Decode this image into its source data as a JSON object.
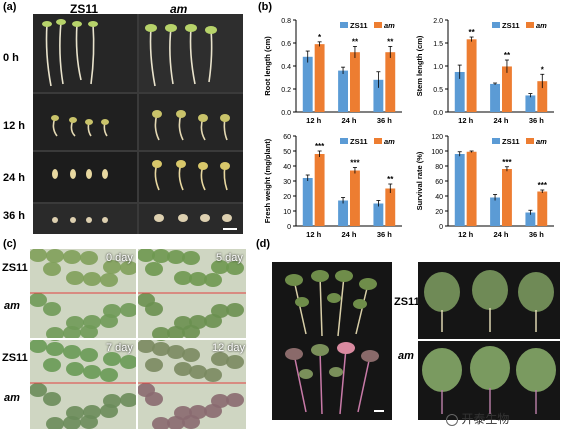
{
  "panel_labels": {
    "a": "(a)",
    "b": "(b)",
    "c": "(c)",
    "d": "(d)"
  },
  "panel_a": {
    "col_left": "ZS11",
    "col_right": "am",
    "rows": [
      "0 h",
      "12 h",
      "24 h",
      "36 h"
    ]
  },
  "panel_c": {
    "rows": [
      "ZS11",
      "am",
      "ZS11",
      "am"
    ],
    "days": [
      "0 day",
      "5 day",
      "7 day",
      "12 day"
    ]
  },
  "panel_d": {
    "rows": [
      "ZS11",
      "am"
    ]
  },
  "watermark": "开泰生物",
  "colors": {
    "zs11": "#5b9bd5",
    "am": "#ed7d31",
    "photo_bg": "#2a2a2a",
    "plate": "#151515"
  },
  "chart_data": [
    {
      "type": "bar",
      "categories": [
        "12 h",
        "24 h",
        "36 h"
      ],
      "series": [
        {
          "name": "ZS11",
          "values": [
            0.48,
            0.36,
            0.28
          ],
          "errors": [
            0.05,
            0.03,
            0.07
          ]
        },
        {
          "name": "am",
          "values": [
            0.59,
            0.52,
            0.52
          ],
          "errors": [
            0.02,
            0.05,
            0.05
          ]
        }
      ],
      "significance": [
        "*",
        "**",
        "**"
      ],
      "ylabel": "Root length (cm)",
      "ylim": [
        0,
        0.8
      ],
      "yticks": [
        0.0,
        0.2,
        0.4,
        0.6,
        0.8
      ],
      "legend": "top-right"
    },
    {
      "type": "bar",
      "categories": [
        "12 h",
        "24 h",
        "36 h"
      ],
      "series": [
        {
          "name": "ZS11",
          "values": [
            0.87,
            0.61,
            0.36
          ],
          "errors": [
            0.15,
            0.02,
            0.04
          ]
        },
        {
          "name": "am",
          "values": [
            1.58,
            0.99,
            0.67
          ],
          "errors": [
            0.05,
            0.14,
            0.15
          ]
        }
      ],
      "significance": [
        "**",
        "**",
        "*"
      ],
      "ylabel": "Stem length (cm)",
      "ylim": [
        0,
        2.0
      ],
      "yticks": [
        0.0,
        0.5,
        1.0,
        1.5,
        2.0
      ],
      "legend": "top-right"
    },
    {
      "type": "bar",
      "categories": [
        "12 h",
        "24 h",
        "36 h"
      ],
      "series": [
        {
          "name": "ZS11",
          "values": [
            32,
            17,
            15
          ],
          "errors": [
            2,
            2,
            2
          ]
        },
        {
          "name": "am",
          "values": [
            48,
            37,
            25
          ],
          "errors": [
            2,
            2,
            3
          ]
        }
      ],
      "significance": [
        "***",
        "***",
        "**"
      ],
      "ylabel": "Fresh weight (mg/plant)",
      "ylim": [
        0,
        60
      ],
      "yticks": [
        0,
        10,
        20,
        30,
        40,
        50,
        60
      ],
      "legend": "top-right"
    },
    {
      "type": "bar",
      "categories": [
        "12 h",
        "24 h",
        "36 h"
      ],
      "series": [
        {
          "name": "ZS11",
          "values": [
            96,
            38,
            18
          ],
          "errors": [
            3,
            4,
            3
          ]
        },
        {
          "name": "am",
          "values": [
            99,
            76,
            46
          ],
          "errors": [
            1,
            3,
            2
          ]
        }
      ],
      "significance": [
        "",
        "***",
        "***"
      ],
      "ylabel": "Survival rate (%)",
      "ylim": [
        0,
        120
      ],
      "yticks": [
        0,
        20,
        40,
        60,
        80,
        100,
        120
      ],
      "legend": "top-right"
    }
  ]
}
